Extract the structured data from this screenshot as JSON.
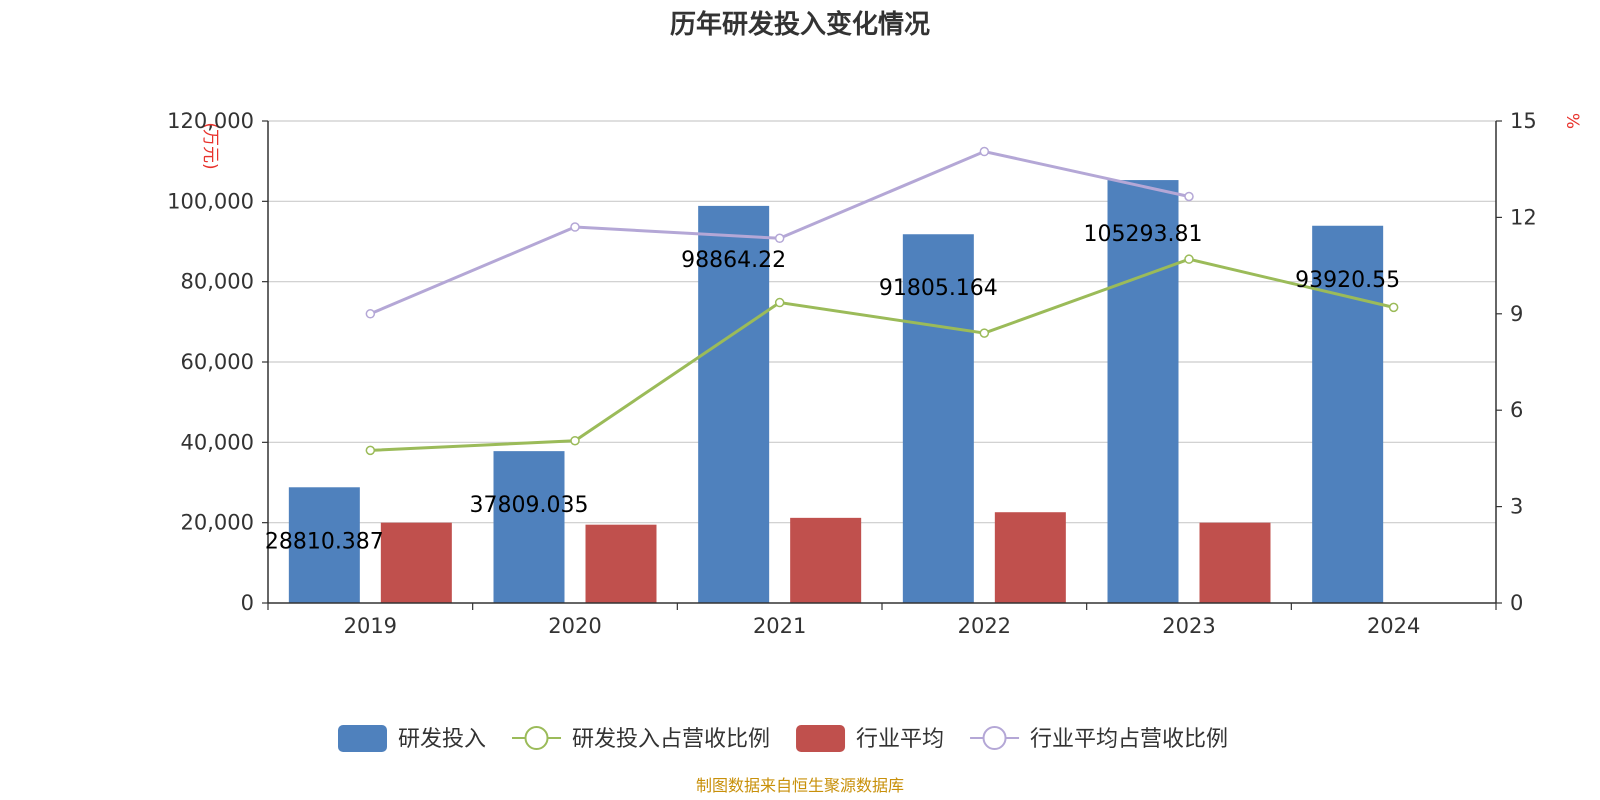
{
  "chart_data": {
    "type": "bar",
    "title": "历年研发投入变化情况",
    "categories": [
      "2019",
      "2020",
      "2021",
      "2022",
      "2023",
      "2024"
    ],
    "left_axis": {
      "unit": "(万元)",
      "min": 0,
      "max": 120000,
      "step": 20000,
      "tick_labels": [
        "0",
        "20,000",
        "40,000",
        "60,000",
        "80,000",
        "100,000",
        "120,000"
      ]
    },
    "right_axis": {
      "unit": "%",
      "min": 0,
      "max": 15,
      "step": 3,
      "tick_labels": [
        "0",
        "3",
        "6",
        "9",
        "12",
        "15"
      ]
    },
    "grid": true,
    "legend_position": "bottom-center",
    "series": [
      {
        "name": "研发投入",
        "kind": "bar",
        "axis": "left",
        "color": "#4f81bd",
        "values": [
          28810.387,
          37809.035,
          98864.22,
          91805.164,
          105293.81,
          93920.55
        ],
        "data_labels": [
          "28810.387",
          "37809.035",
          "98864.22",
          "91805.164",
          "105293.81",
          "93920.55"
        ]
      },
      {
        "name": "研发投入占营收比例",
        "kind": "line",
        "axis": "right",
        "color": "#9bbb59",
        "values": [
          4.75,
          5.05,
          9.35,
          8.4,
          10.7,
          9.2
        ]
      },
      {
        "name": "行业平均",
        "kind": "bar",
        "axis": "left",
        "color": "#c0504d",
        "values": [
          20000,
          19500,
          21200,
          22600,
          20000,
          null
        ]
      },
      {
        "name": "行业平均占营收比例",
        "kind": "line",
        "axis": "right",
        "color": "#b4a7d6",
        "values": [
          9.0,
          11.7,
          11.35,
          14.05,
          12.65,
          null
        ]
      }
    ]
  },
  "source_note": "制图数据来自恒生聚源数据库"
}
